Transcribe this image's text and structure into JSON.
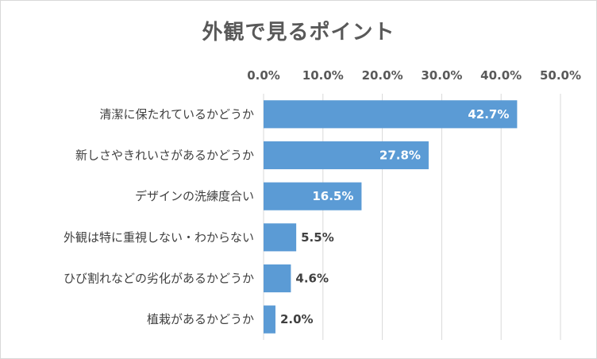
{
  "chart_data": {
    "type": "bar",
    "orientation": "horizontal",
    "title": "外観で見るポイント",
    "categories": [
      "清潔に保たれているかどうか",
      "新しさやきれいさがあるかどうか",
      "デザインの洗練度合い",
      "外観は特に重視しない・わからない",
      "ひび割れなどの劣化があるかどうか",
      "植栽があるかどうか"
    ],
    "values": [
      42.7,
      27.8,
      16.5,
      5.5,
      4.6,
      2.0
    ],
    "value_labels": [
      "42.7%",
      "27.8%",
      "16.5%",
      "5.5%",
      "4.6%",
      "2.0%"
    ],
    "xlim": [
      0,
      50
    ],
    "x_ticks": [
      0,
      10,
      20,
      30,
      40,
      50
    ],
    "x_tick_labels": [
      "0.0%",
      "10.0%",
      "20.0%",
      "30.0%",
      "40.0%",
      "50.0%"
    ],
    "x_axis_position": "top",
    "grid": true,
    "bar_color": "#5b9bd5",
    "gridline_color": "#d9d9d9"
  }
}
